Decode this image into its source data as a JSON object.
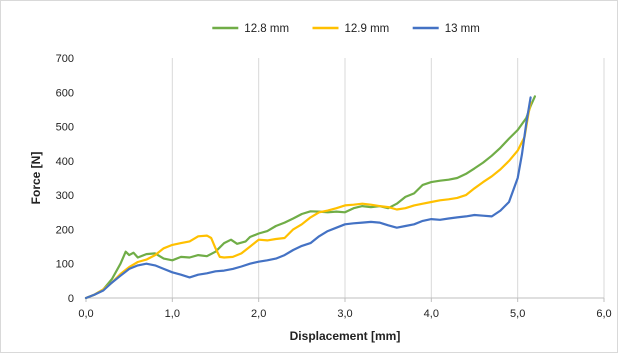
{
  "chart_data": {
    "type": "line",
    "title": "",
    "xlabel": "Displacement [mm]",
    "ylabel": "Force [N]",
    "xlim": [
      0,
      6
    ],
    "ylim": [
      0,
      700
    ],
    "xticks": [
      "0,0",
      "1,0",
      "2,0",
      "3,0",
      "4,0",
      "5,0",
      "6,0"
    ],
    "yticks": [
      "0",
      "100",
      "200",
      "300",
      "400",
      "500",
      "600",
      "700"
    ],
    "grid": "vertical",
    "legend": "top",
    "series": [
      {
        "name": "12.8 mm",
        "color": "#70ad47",
        "points": [
          [
            0,
            0
          ],
          [
            0.1,
            10
          ],
          [
            0.2,
            25
          ],
          [
            0.3,
            55
          ],
          [
            0.4,
            100
          ],
          [
            0.46,
            135
          ],
          [
            0.5,
            125
          ],
          [
            0.55,
            132
          ],
          [
            0.6,
            118
          ],
          [
            0.7,
            128
          ],
          [
            0.8,
            130
          ],
          [
            0.9,
            115
          ],
          [
            1.0,
            110
          ],
          [
            1.1,
            120
          ],
          [
            1.2,
            118
          ],
          [
            1.3,
            125
          ],
          [
            1.4,
            122
          ],
          [
            1.5,
            135
          ],
          [
            1.6,
            160
          ],
          [
            1.68,
            170
          ],
          [
            1.75,
            158
          ],
          [
            1.85,
            165
          ],
          [
            1.9,
            178
          ],
          [
            2.0,
            188
          ],
          [
            2.1,
            195
          ],
          [
            2.2,
            210
          ],
          [
            2.3,
            220
          ],
          [
            2.4,
            232
          ],
          [
            2.5,
            245
          ],
          [
            2.6,
            253
          ],
          [
            2.7,
            252
          ],
          [
            2.8,
            250
          ],
          [
            2.9,
            252
          ],
          [
            3.0,
            250
          ],
          [
            3.1,
            262
          ],
          [
            3.2,
            268
          ],
          [
            3.3,
            265
          ],
          [
            3.4,
            268
          ],
          [
            3.5,
            262
          ],
          [
            3.6,
            275
          ],
          [
            3.7,
            295
          ],
          [
            3.8,
            305
          ],
          [
            3.9,
            330
          ],
          [
            4.0,
            338
          ],
          [
            4.1,
            342
          ],
          [
            4.2,
            345
          ],
          [
            4.3,
            350
          ],
          [
            4.4,
            362
          ],
          [
            4.5,
            378
          ],
          [
            4.6,
            395
          ],
          [
            4.7,
            415
          ],
          [
            4.8,
            438
          ],
          [
            4.9,
            465
          ],
          [
            5.0,
            490
          ],
          [
            5.1,
            525
          ],
          [
            5.15,
            560
          ],
          [
            5.2,
            588
          ]
        ]
      },
      {
        "name": "12.9 mm",
        "color": "#ffc000",
        "points": [
          [
            0,
            0
          ],
          [
            0.1,
            10
          ],
          [
            0.2,
            25
          ],
          [
            0.3,
            45
          ],
          [
            0.4,
            70
          ],
          [
            0.5,
            90
          ],
          [
            0.6,
            105
          ],
          [
            0.7,
            112
          ],
          [
            0.8,
            125
          ],
          [
            0.9,
            145
          ],
          [
            1.0,
            155
          ],
          [
            1.1,
            160
          ],
          [
            1.2,
            165
          ],
          [
            1.3,
            180
          ],
          [
            1.4,
            182
          ],
          [
            1.45,
            175
          ],
          [
            1.5,
            145
          ],
          [
            1.55,
            120
          ],
          [
            1.6,
            118
          ],
          [
            1.7,
            120
          ],
          [
            1.8,
            130
          ],
          [
            1.9,
            150
          ],
          [
            2.0,
            170
          ],
          [
            2.1,
            168
          ],
          [
            2.2,
            172
          ],
          [
            2.3,
            175
          ],
          [
            2.4,
            200
          ],
          [
            2.5,
            215
          ],
          [
            2.6,
            235
          ],
          [
            2.7,
            250
          ],
          [
            2.8,
            255
          ],
          [
            2.9,
            262
          ],
          [
            3.0,
            270
          ],
          [
            3.1,
            272
          ],
          [
            3.2,
            275
          ],
          [
            3.3,
            272
          ],
          [
            3.4,
            268
          ],
          [
            3.5,
            265
          ],
          [
            3.6,
            258
          ],
          [
            3.7,
            262
          ],
          [
            3.8,
            270
          ],
          [
            3.9,
            275
          ],
          [
            4.0,
            280
          ],
          [
            4.1,
            285
          ],
          [
            4.2,
            288
          ],
          [
            4.3,
            292
          ],
          [
            4.4,
            300
          ],
          [
            4.5,
            320
          ],
          [
            4.6,
            338
          ],
          [
            4.7,
            355
          ],
          [
            4.8,
            375
          ],
          [
            4.9,
            400
          ],
          [
            5.0,
            430
          ],
          [
            5.08,
            470
          ],
          [
            5.12,
            530
          ],
          [
            5.15,
            570
          ]
        ]
      },
      {
        "name": "13 mm",
        "color": "#4472c4",
        "points": [
          [
            0,
            0
          ],
          [
            0.1,
            10
          ],
          [
            0.2,
            22
          ],
          [
            0.3,
            45
          ],
          [
            0.4,
            65
          ],
          [
            0.5,
            85
          ],
          [
            0.6,
            95
          ],
          [
            0.7,
            100
          ],
          [
            0.8,
            95
          ],
          [
            0.9,
            85
          ],
          [
            1.0,
            75
          ],
          [
            1.1,
            68
          ],
          [
            1.2,
            60
          ],
          [
            1.3,
            68
          ],
          [
            1.4,
            72
          ],
          [
            1.5,
            78
          ],
          [
            1.6,
            80
          ],
          [
            1.7,
            85
          ],
          [
            1.8,
            92
          ],
          [
            1.9,
            100
          ],
          [
            2.0,
            106
          ],
          [
            2.1,
            110
          ],
          [
            2.2,
            115
          ],
          [
            2.3,
            125
          ],
          [
            2.4,
            140
          ],
          [
            2.5,
            152
          ],
          [
            2.6,
            160
          ],
          [
            2.7,
            180
          ],
          [
            2.8,
            195
          ],
          [
            2.9,
            205
          ],
          [
            3.0,
            215
          ],
          [
            3.1,
            218
          ],
          [
            3.2,
            220
          ],
          [
            3.3,
            222
          ],
          [
            3.4,
            220
          ],
          [
            3.5,
            212
          ],
          [
            3.6,
            205
          ],
          [
            3.7,
            210
          ],
          [
            3.8,
            215
          ],
          [
            3.9,
            225
          ],
          [
            4.0,
            230
          ],
          [
            4.1,
            228
          ],
          [
            4.2,
            232
          ],
          [
            4.3,
            235
          ],
          [
            4.4,
            238
          ],
          [
            4.5,
            242
          ],
          [
            4.6,
            240
          ],
          [
            4.7,
            238
          ],
          [
            4.8,
            255
          ],
          [
            4.9,
            280
          ],
          [
            5.0,
            350
          ],
          [
            5.05,
            420
          ],
          [
            5.1,
            510
          ],
          [
            5.15,
            585
          ]
        ]
      }
    ]
  }
}
